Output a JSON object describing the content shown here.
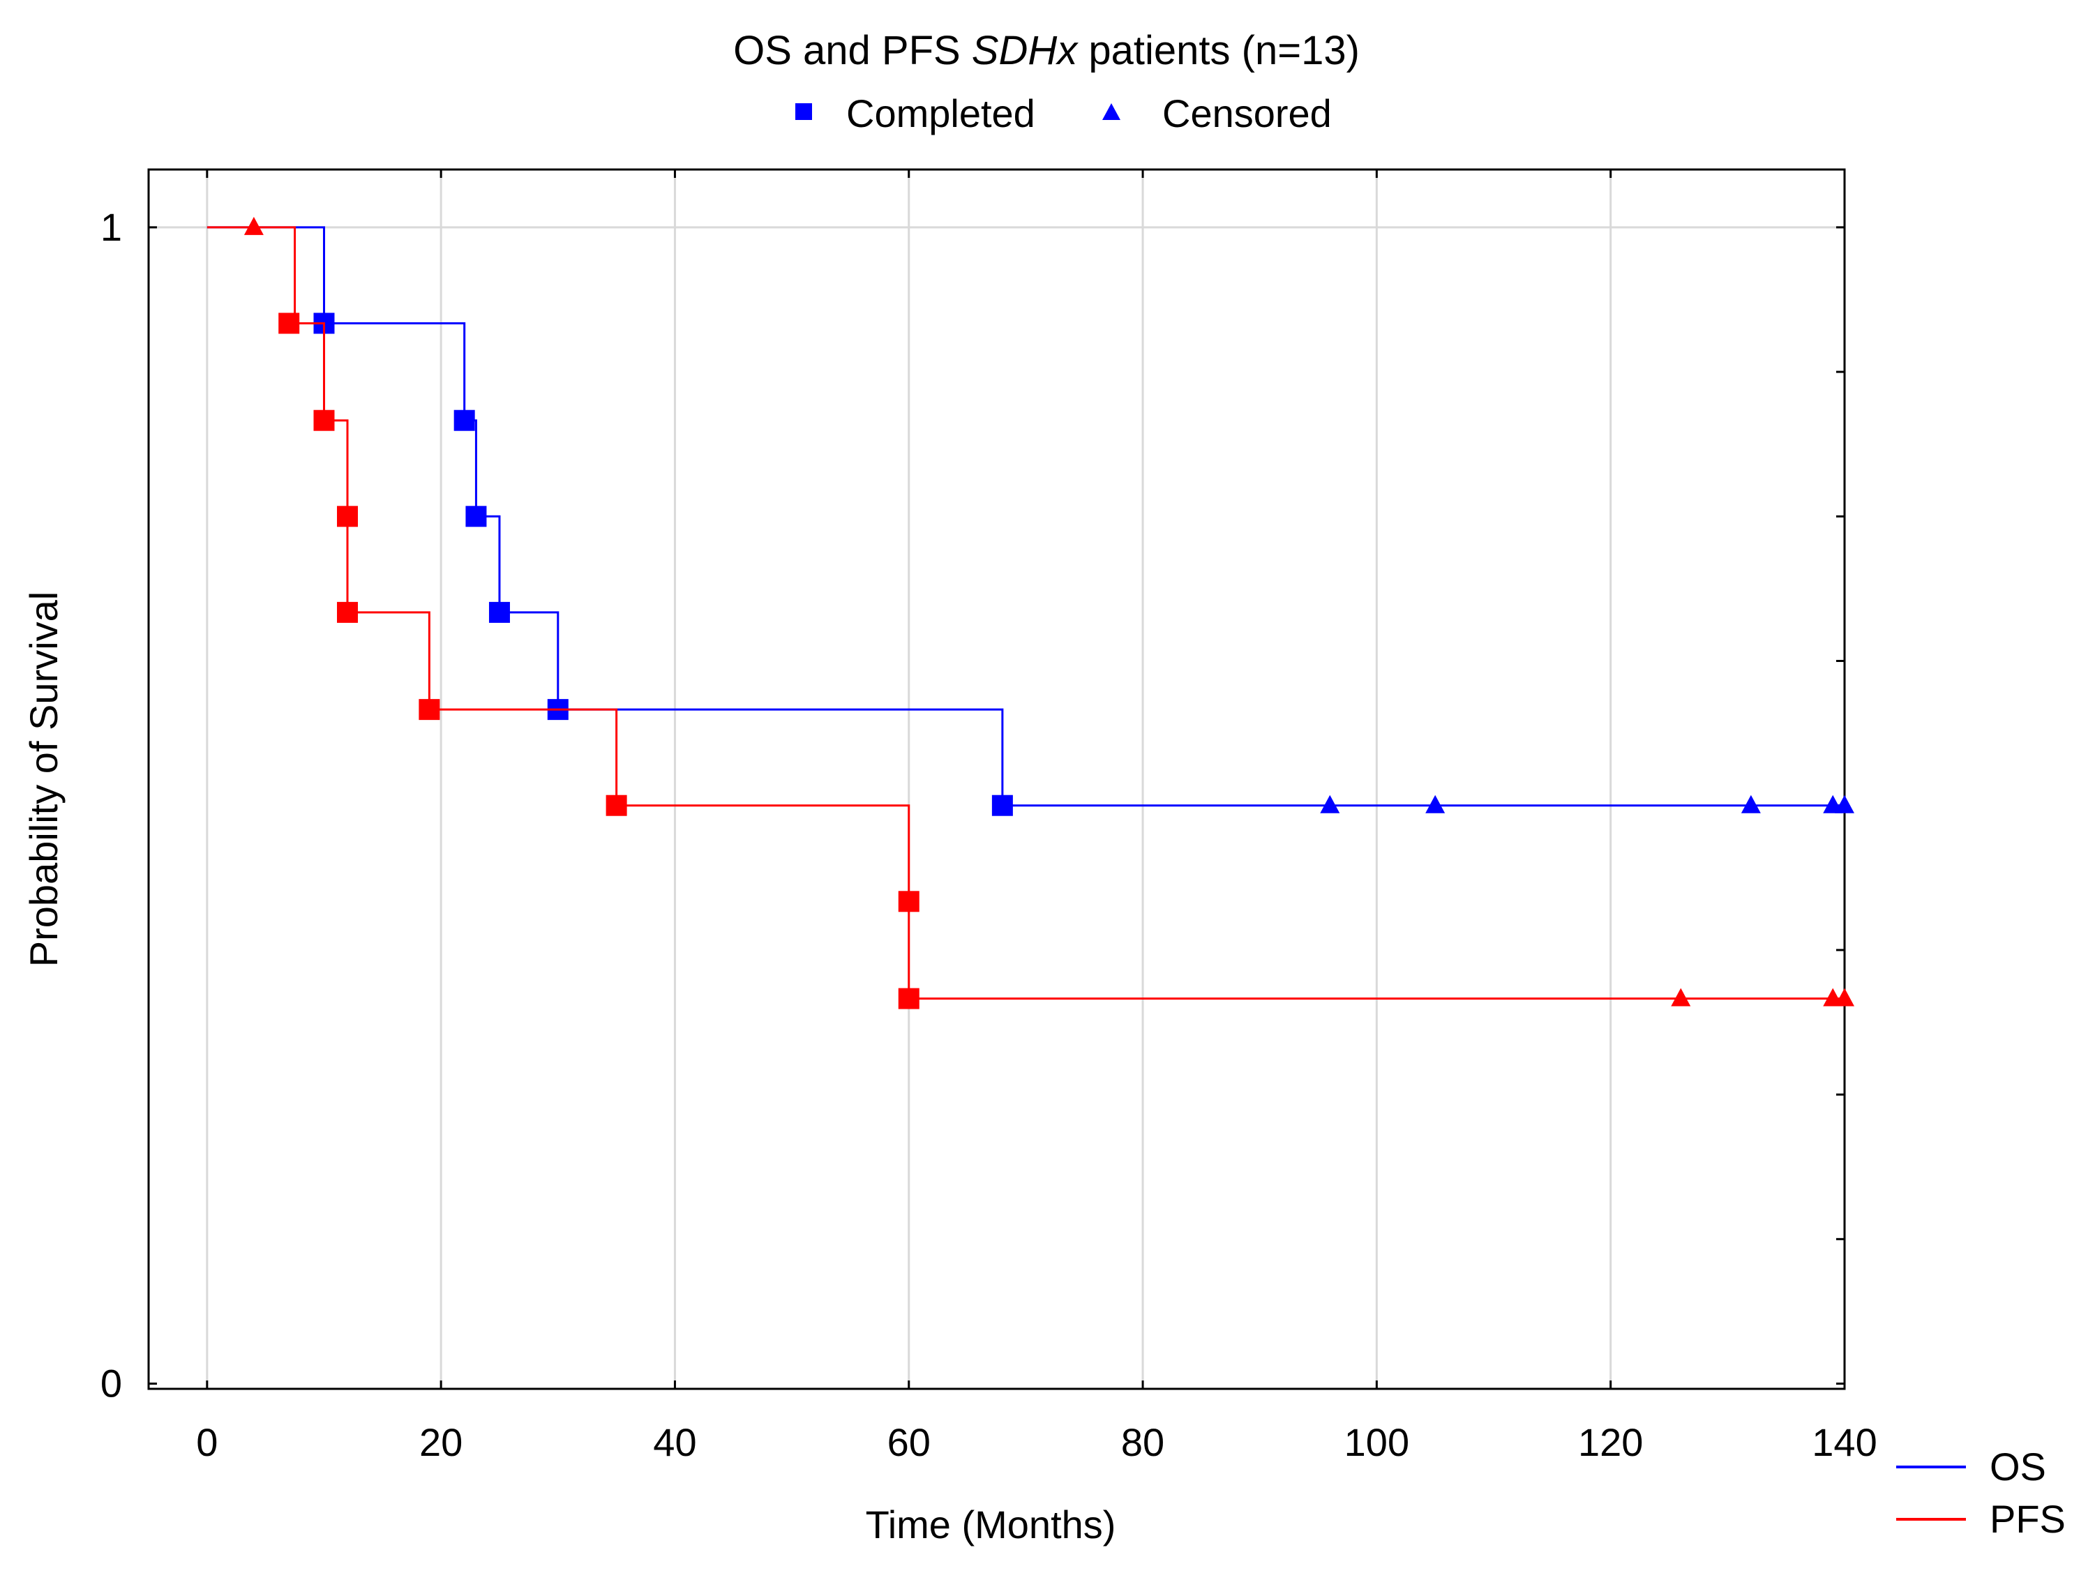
{
  "chart_data": {
    "type": "line",
    "subtype": "kaplan-meier",
    "title_parts": [
      "OS and PFS ",
      "SDHx",
      " patients (n=13)"
    ],
    "marker_legend": {
      "completed_label": "Completed",
      "censored_label": "Censored"
    },
    "xlabel": "Time (Months)",
    "ylabel": "Probability of Survival",
    "xlim": [
      -5,
      140
    ],
    "ylim": [
      -0.0045,
      1.05
    ],
    "x_ticks": [
      "0",
      "20",
      "40",
      "60",
      "80",
      "100",
      "120",
      "140"
    ],
    "y_tick_labels": [
      "0",
      "1"
    ],
    "y_minor_ticks": [
      0.125,
      0.25,
      0.375,
      0.5,
      0.625,
      0.75,
      0.875
    ],
    "grid": true,
    "series": [
      {
        "name": "OS",
        "color": "#0000ff",
        "steps": [
          [
            0,
            1.0
          ],
          [
            10,
            0.917
          ],
          [
            22,
            0.833
          ],
          [
            23,
            0.75
          ],
          [
            25,
            0.667
          ],
          [
            30,
            0.583
          ],
          [
            68,
            0.5
          ]
        ],
        "end_x": 140,
        "completed": [
          [
            10,
            0.917
          ],
          [
            22,
            0.833
          ],
          [
            23,
            0.75
          ],
          [
            25,
            0.667
          ],
          [
            30,
            0.583
          ],
          [
            68,
            0.5
          ]
        ],
        "censored": [
          [
            96,
            0.5
          ],
          [
            105,
            0.5
          ],
          [
            132,
            0.5
          ],
          [
            139,
            0.5
          ],
          [
            140,
            0.5
          ]
        ]
      },
      {
        "name": "PFS",
        "color": "#ff0000",
        "steps": [
          [
            0,
            1.0
          ],
          [
            7.5,
            0.917
          ],
          [
            10,
            0.833
          ],
          [
            12,
            0.75
          ],
          [
            12,
            0.667
          ],
          [
            19,
            0.583
          ],
          [
            35,
            0.5
          ],
          [
            60,
            0.417
          ],
          [
            60,
            0.333
          ]
        ],
        "end_x": 140,
        "completed": [
          [
            7,
            0.917
          ],
          [
            10,
            0.833
          ],
          [
            12,
            0.75
          ],
          [
            12,
            0.667
          ],
          [
            19,
            0.583
          ],
          [
            35,
            0.5
          ],
          [
            60,
            0.417
          ],
          [
            60,
            0.333
          ]
        ],
        "censored": [
          [
            4,
            1.0
          ],
          [
            126,
            0.333
          ],
          [
            139,
            0.333
          ],
          [
            140,
            0.333
          ]
        ]
      }
    ]
  }
}
